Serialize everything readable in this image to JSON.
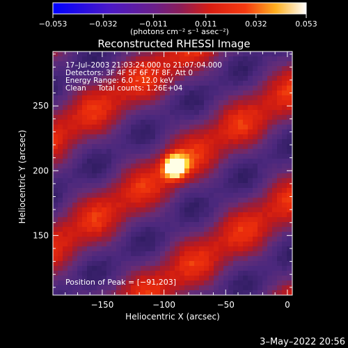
{
  "chart_data": {
    "type": "heatmap",
    "title": "Reconstructed RHESSI Image",
    "xlabel": "Heliocentric X (arcsec)",
    "ylabel": "Heliocentric Y (arcsec)",
    "xlim": [
      -190,
      4
    ],
    "ylim": [
      104,
      292
    ],
    "x_ticks": [
      -150,
      -100,
      -50,
      0
    ],
    "x_tick_labels": [
      "−150",
      "−100",
      "−50",
      "0"
    ],
    "y_ticks": [
      150,
      200,
      250
    ],
    "y_tick_labels": [
      "150",
      "200",
      "250"
    ],
    "colorbar": {
      "min": -0.053,
      "max": 0.053,
      "ticks": [
        -0.053,
        -0.032,
        -0.011,
        0.011,
        0.032,
        0.053
      ],
      "tick_labels": [
        "−0.053",
        "−0.032",
        "−0.011",
        "0.011",
        "0.032",
        "0.053"
      ],
      "units": "(photons cm⁻² s⁻¹ asec⁻²)",
      "colormap": "blue-purple-red-yellow-white"
    },
    "annotations": [
      "17–Jul–2003 21:03:24.000 to 21:07:04.000",
      "Detectors: 3F 4F 5F 6F 7F 8F, Att 0",
      "Energy Range: 6.0 – 12.0 keV",
      "Clean     Total counts: 1.26E+04"
    ],
    "peak_label": "Position of Peak = [−91,203]",
    "peak": {
      "x": -91,
      "y": 203
    },
    "timestamp": "3–May–2022 20:56"
  }
}
